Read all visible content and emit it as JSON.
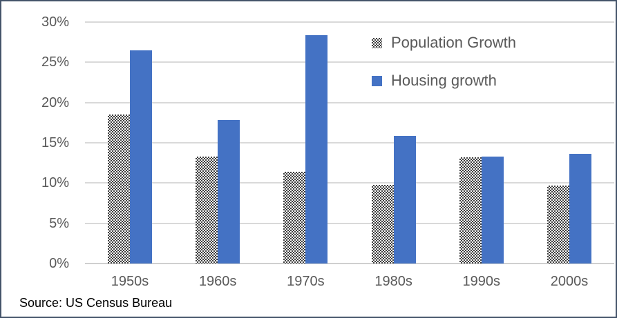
{
  "chart_data": {
    "type": "bar",
    "categories": [
      "1950s",
      "1960s",
      "1970s",
      "1980s",
      "1990s",
      "2000s"
    ],
    "series": [
      {
        "name": "Population Growth",
        "style": "pattern",
        "values": [
          18.5,
          13.3,
          11.4,
          9.8,
          13.2,
          9.7
        ]
      },
      {
        "name": "Housing growth",
        "style": "solid",
        "values": [
          26.5,
          17.8,
          28.4,
          15.9,
          13.3,
          13.6
        ]
      }
    ],
    "title": "",
    "xlabel": "",
    "ylabel": "",
    "ylim": [
      0,
      30
    ],
    "y_ticks": [
      "0%",
      "5%",
      "10%",
      "15%",
      "20%",
      "25%",
      "30%"
    ],
    "grid": true,
    "legend_position": "top-right"
  },
  "source_note": "Source: US Census Bureau",
  "colors": {
    "housing_blue": "#4472C4",
    "pattern_dark": "#404040",
    "gridline": "#D9D9D9",
    "axis_text": "#595959",
    "border": "#44546A"
  }
}
